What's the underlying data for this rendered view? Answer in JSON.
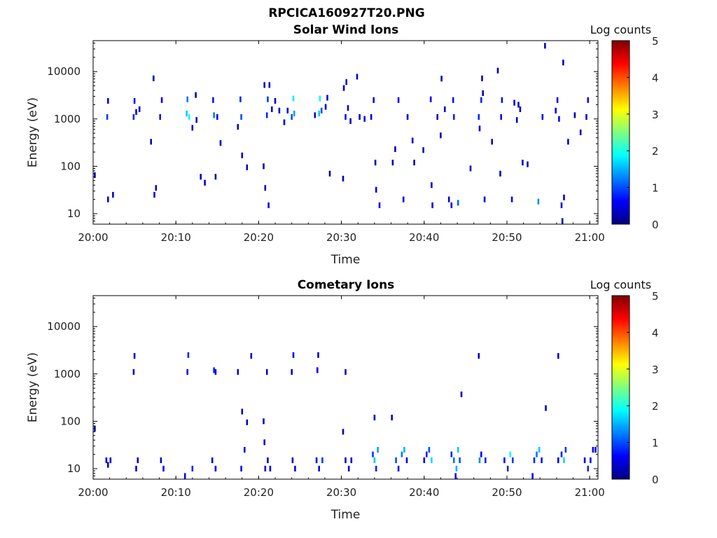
{
  "figure": {
    "title": "RPCICA160927T20.PNG"
  },
  "chart_data": [
    {
      "type": "heatmap",
      "title": "Solar Wind Ions",
      "xlabel": "Time",
      "ylabel": "Energy (eV)",
      "y_scale": "log",
      "xlim_min": [
        0,
        61
      ],
      "ylim": [
        6,
        45000
      ],
      "xticks": [
        {
          "v": 0,
          "label": "20:00"
        },
        {
          "v": 10,
          "label": "20:10"
        },
        {
          "v": 20,
          "label": "20:20"
        },
        {
          "v": 30,
          "label": "20:30"
        },
        {
          "v": 40,
          "label": "20:40"
        },
        {
          "v": 50,
          "label": "20:50"
        },
        {
          "v": 60,
          "label": "21:00"
        }
      ],
      "yticks": [
        {
          "v": 10,
          "label": "10"
        },
        {
          "v": 100,
          "label": "100"
        },
        {
          "v": 1000,
          "label": "1000"
        },
        {
          "v": 10000,
          "label": "10000"
        }
      ],
      "colorbar": {
        "label": "Log counts",
        "min": 0,
        "max": 5,
        "ticks": [
          "0",
          "1",
          "2",
          "3",
          "4",
          "5"
        ]
      },
      "cells": [
        [
          0.2,
          65,
          0.3
        ],
        [
          1.7,
          1100,
          0.9
        ],
        [
          1.8,
          2400,
          0.5
        ],
        [
          1.8,
          20,
          0.4
        ],
        [
          2.4,
          25,
          0.4
        ],
        [
          4.9,
          1100,
          0.8
        ],
        [
          5.0,
          2400,
          0.6
        ],
        [
          5.2,
          1400,
          0.5
        ],
        [
          5.6,
          1600,
          0.4
        ],
        [
          7.0,
          330,
          0.3
        ],
        [
          7.3,
          7200,
          0.3
        ],
        [
          7.4,
          25,
          0.4
        ],
        [
          7.6,
          35,
          0.3
        ],
        [
          8.1,
          1100,
          0.7
        ],
        [
          8.3,
          2500,
          0.6
        ],
        [
          11.3,
          1300,
          1.6
        ],
        [
          11.4,
          2600,
          1.2
        ],
        [
          11.6,
          1100,
          1.9
        ],
        [
          12.0,
          650,
          0.4
        ],
        [
          12.4,
          3200,
          0.3
        ],
        [
          12.5,
          950,
          0.3
        ],
        [
          13.0,
          60,
          0.3
        ],
        [
          13.5,
          45,
          0.4
        ],
        [
          14.5,
          2500,
          0.7
        ],
        [
          14.6,
          1200,
          1.2
        ],
        [
          14.8,
          60,
          0.3
        ],
        [
          15.0,
          1100,
          0.6
        ],
        [
          15.4,
          310,
          0.3
        ],
        [
          17.5,
          680,
          0.3
        ],
        [
          17.8,
          2600,
          0.8
        ],
        [
          17.9,
          1100,
          1.0
        ],
        [
          18.0,
          170,
          0.4
        ],
        [
          18.6,
          95,
          0.3
        ],
        [
          20.6,
          100,
          0.3
        ],
        [
          20.7,
          5200,
          0.3
        ],
        [
          20.8,
          35,
          0.4
        ],
        [
          21.0,
          1200,
          0.8
        ],
        [
          21.1,
          2600,
          0.9
        ],
        [
          21.2,
          15,
          0.5
        ],
        [
          21.3,
          5200,
          0.3
        ],
        [
          21.6,
          1600,
          0.6
        ],
        [
          22.0,
          2400,
          0.4
        ],
        [
          22.5,
          1500,
          0.4
        ],
        [
          23.1,
          850,
          0.3
        ],
        [
          23.5,
          1500,
          0.5
        ],
        [
          24.0,
          1100,
          1.0
        ],
        [
          24.2,
          2700,
          1.8
        ],
        [
          24.3,
          1300,
          1.4
        ],
        [
          26.8,
          1200,
          0.4
        ],
        [
          27.3,
          1300,
          1.6
        ],
        [
          27.4,
          2700,
          1.9
        ],
        [
          27.6,
          1500,
          1.0
        ],
        [
          28.1,
          1800,
          0.4
        ],
        [
          28.3,
          2800,
          0.5
        ],
        [
          28.6,
          70,
          0.3
        ],
        [
          30.2,
          55,
          0.3
        ],
        [
          30.3,
          4500,
          0.3
        ],
        [
          30.5,
          1100,
          0.7
        ],
        [
          30.6,
          6000,
          0.4
        ],
        [
          30.8,
          1700,
          0.4
        ],
        [
          31.1,
          900,
          0.3
        ],
        [
          31.9,
          7800,
          0.3
        ],
        [
          32.2,
          1100,
          0.4
        ],
        [
          32.8,
          1000,
          0.4
        ],
        [
          33.6,
          1100,
          0.5
        ],
        [
          33.9,
          2500,
          0.5
        ],
        [
          34.1,
          120,
          0.3
        ],
        [
          34.2,
          32,
          0.4
        ],
        [
          34.6,
          15,
          0.6
        ],
        [
          36.2,
          120,
          0.3
        ],
        [
          36.5,
          230,
          0.3
        ],
        [
          36.9,
          2500,
          0.6
        ],
        [
          37.5,
          20,
          0.5
        ],
        [
          38.0,
          1100,
          0.5
        ],
        [
          38.6,
          350,
          0.3
        ],
        [
          38.8,
          120,
          0.3
        ],
        [
          39.9,
          220,
          0.3
        ],
        [
          40.8,
          2600,
          0.6
        ],
        [
          40.9,
          40,
          0.4
        ],
        [
          41.0,
          15,
          0.5
        ],
        [
          41.6,
          1100,
          0.3
        ],
        [
          42.0,
          450,
          0.3
        ],
        [
          42.1,
          7100,
          0.3
        ],
        [
          42.5,
          1600,
          0.4
        ],
        [
          43.0,
          20,
          0.4
        ],
        [
          43.3,
          15,
          0.5
        ],
        [
          43.5,
          2500,
          0.7
        ],
        [
          43.6,
          1100,
          0.8
        ],
        [
          44.1,
          17,
          1.1
        ],
        [
          45.6,
          90,
          0.3
        ],
        [
          46.6,
          1100,
          0.8
        ],
        [
          46.7,
          630,
          0.3
        ],
        [
          46.9,
          2500,
          0.8
        ],
        [
          47.1,
          3500,
          0.3
        ],
        [
          47.0,
          7200,
          0.3
        ],
        [
          47.3,
          20,
          0.4
        ],
        [
          48.2,
          330,
          0.3
        ],
        [
          48.9,
          10500,
          0.3
        ],
        [
          49.3,
          1100,
          0.6
        ],
        [
          49.4,
          2500,
          0.7
        ],
        [
          49.2,
          70,
          0.3
        ],
        [
          50.6,
          20,
          0.6
        ],
        [
          50.9,
          2200,
          0.4
        ],
        [
          51.2,
          950,
          0.3
        ],
        [
          51.4,
          2000,
          0.3
        ],
        [
          51.6,
          1600,
          0.4
        ],
        [
          51.9,
          120,
          0.3
        ],
        [
          52.5,
          110,
          0.3
        ],
        [
          53.8,
          18,
          1.3
        ],
        [
          54.3,
          1100,
          0.5
        ],
        [
          54.6,
          35000,
          0.3
        ],
        [
          55.9,
          1500,
          0.6
        ],
        [
          56.1,
          2500,
          0.7
        ],
        [
          56.3,
          1000,
          0.6
        ],
        [
          56.6,
          15,
          0.5
        ],
        [
          56.8,
          15500,
          0.3
        ],
        [
          56.9,
          22,
          0.4
        ],
        [
          56.7,
          7,
          0.3
        ],
        [
          57.4,
          330,
          0.3
        ],
        [
          58.2,
          1200,
          0.3
        ],
        [
          58.9,
          520,
          0.3
        ],
        [
          59.6,
          1100,
          0.5
        ],
        [
          59.8,
          2500,
          0.6
        ]
      ]
    },
    {
      "type": "heatmap",
      "title": "Cometary Ions",
      "xlabel": "Time",
      "ylabel": "Energy (eV)",
      "y_scale": "log",
      "xlim_min": [
        0,
        61
      ],
      "ylim": [
        6,
        45000
      ],
      "xticks": [
        {
          "v": 0,
          "label": "20:00"
        },
        {
          "v": 10,
          "label": "20:10"
        },
        {
          "v": 20,
          "label": "20:20"
        },
        {
          "v": 30,
          "label": "20:30"
        },
        {
          "v": 40,
          "label": "20:40"
        },
        {
          "v": 50,
          "label": "20:50"
        },
        {
          "v": 60,
          "label": "21:00"
        }
      ],
      "yticks": [
        {
          "v": 10,
          "label": "10"
        },
        {
          "v": 100,
          "label": "100"
        },
        {
          "v": 1000,
          "label": "1000"
        },
        {
          "v": 10000,
          "label": "10000"
        }
      ],
      "colorbar": {
        "label": "Log counts",
        "min": 0,
        "max": 5,
        "ticks": [
          "0",
          "1",
          "2",
          "3",
          "4",
          "5"
        ]
      },
      "cells": [
        [
          0.2,
          70,
          0.3
        ],
        [
          4.9,
          1100,
          0.5
        ],
        [
          5.0,
          2400,
          0.5
        ],
        [
          11.4,
          1100,
          0.6
        ],
        [
          11.5,
          2500,
          0.8
        ],
        [
          14.6,
          1200,
          0.8
        ],
        [
          14.8,
          1100,
          0.5
        ],
        [
          17.5,
          1100,
          0.4
        ],
        [
          18.0,
          160,
          0.3
        ],
        [
          18.6,
          95,
          0.3
        ],
        [
          19.1,
          2400,
          0.4
        ],
        [
          20.6,
          100,
          0.3
        ],
        [
          20.7,
          36,
          0.3
        ],
        [
          21.0,
          1100,
          0.4
        ],
        [
          24.0,
          1100,
          0.5
        ],
        [
          24.2,
          2500,
          0.6
        ],
        [
          27.1,
          1200,
          0.5
        ],
        [
          27.2,
          2500,
          0.4
        ],
        [
          30.2,
          60,
          0.3
        ],
        [
          30.5,
          1100,
          0.4
        ],
        [
          34.0,
          120,
          0.3
        ],
        [
          36.1,
          120,
          0.3
        ],
        [
          44.5,
          370,
          0.3
        ],
        [
          46.6,
          2400,
          0.4
        ],
        [
          54.7,
          190,
          0.3
        ],
        [
          56.2,
          2400,
          0.4
        ],
        [
          11.1,
          7,
          0.6
        ],
        [
          12.0,
          10,
          0.8
        ],
        [
          53.1,
          7,
          0.6
        ],
        [
          43.8,
          7,
          0.7
        ],
        [
          1.6,
          15,
          0.4
        ],
        [
          1.8,
          12,
          0.4
        ],
        [
          2.1,
          15,
          0.5
        ],
        [
          5.2,
          10,
          0.5
        ],
        [
          5.4,
          15,
          0.5
        ],
        [
          8.2,
          15,
          0.4
        ],
        [
          8.5,
          10,
          0.6
        ],
        [
          14.4,
          15,
          0.4
        ],
        [
          14.8,
          10,
          0.5
        ],
        [
          17.9,
          10,
          0.5
        ],
        [
          18.3,
          25,
          0.4
        ],
        [
          20.8,
          10,
          0.5
        ],
        [
          21.1,
          15,
          0.4
        ],
        [
          21.4,
          10,
          0.6
        ],
        [
          24.1,
          15,
          0.4
        ],
        [
          24.4,
          10,
          0.5
        ],
        [
          27.0,
          15,
          0.5
        ],
        [
          27.3,
          10,
          0.6
        ],
        [
          27.7,
          15,
          0.9
        ],
        [
          30.5,
          15,
          0.4
        ],
        [
          30.9,
          10,
          0.5
        ],
        [
          31.2,
          15,
          0.4
        ],
        [
          33.8,
          20,
          0.9
        ],
        [
          34.0,
          15,
          1.6
        ],
        [
          34.2,
          10,
          0.8
        ],
        [
          34.4,
          25,
          1.4
        ],
        [
          36.6,
          15,
          1.0
        ],
        [
          36.9,
          10,
          0.6
        ],
        [
          37.3,
          20,
          1.2
        ],
        [
          37.6,
          25,
          1.5
        ],
        [
          37.9,
          15,
          0.6
        ],
        [
          40.0,
          15,
          0.5
        ],
        [
          40.3,
          20,
          0.8
        ],
        [
          40.6,
          25,
          1.0
        ],
        [
          40.9,
          15,
          1.7
        ],
        [
          43.3,
          20,
          0.8
        ],
        [
          43.6,
          15,
          1.2
        ],
        [
          43.9,
          10,
          1.5
        ],
        [
          44.1,
          25,
          1.6
        ],
        [
          44.3,
          15,
          1.0
        ],
        [
          46.7,
          15,
          1.3
        ],
        [
          46.9,
          20,
          0.6
        ],
        [
          47.4,
          15,
          0.8
        ],
        [
          49.7,
          15,
          0.7
        ],
        [
          50.1,
          10,
          0.8
        ],
        [
          50.4,
          20,
          1.9
        ],
        [
          50.7,
          15,
          0.9
        ],
        [
          53.3,
          15,
          0.8
        ],
        [
          53.6,
          20,
          1.2
        ],
        [
          53.9,
          25,
          1.6
        ],
        [
          54.2,
          15,
          0.7
        ],
        [
          56.2,
          15,
          0.5
        ],
        [
          56.6,
          20,
          0.8
        ],
        [
          56.9,
          15,
          1.7
        ],
        [
          57.1,
          25,
          0.9
        ],
        [
          59.4,
          15,
          0.5
        ],
        [
          59.8,
          10,
          0.8
        ],
        [
          60.1,
          15,
          0.7
        ],
        [
          60.4,
          25,
          0.6
        ],
        [
          60.7,
          25,
          0.5
        ]
      ]
    }
  ]
}
